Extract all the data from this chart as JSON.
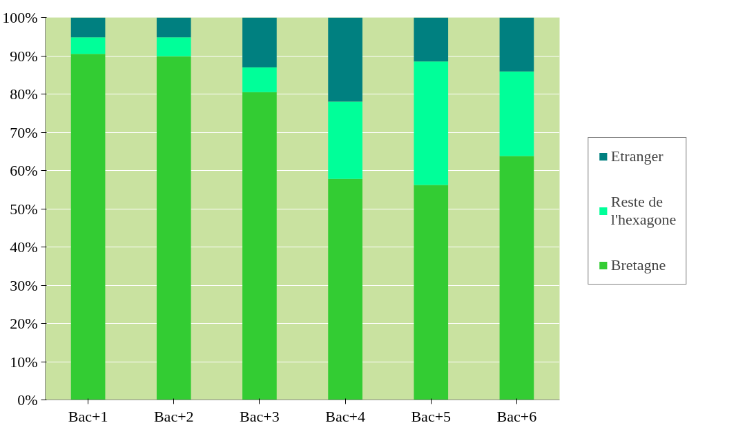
{
  "chart_data": {
    "type": "bar",
    "stacked": true,
    "categories": [
      "Bac+1",
      "Bac+2",
      "Bac+3",
      "Bac+4",
      "Bac+5",
      "Bac+6"
    ],
    "series": [
      {
        "name": "Bretagne",
        "color": "#33cc33",
        "values": [
          90.5,
          89.9,
          80.5,
          57.8,
          56.2,
          63.8
        ]
      },
      {
        "name": "Reste de\nl'hexagone",
        "color": "#00ff99",
        "values": [
          4.3,
          4.9,
          6.5,
          20.2,
          32.3,
          22.1
        ]
      },
      {
        "name": "Etranger",
        "color": "#008080",
        "values": [
          5.2,
          5.2,
          13.0,
          22.0,
          11.5,
          14.1
        ]
      }
    ],
    "ylim": [
      0,
      100
    ],
    "yticks": [
      {
        "value": 0,
        "label": "0%"
      },
      {
        "value": 10,
        "label": "10%"
      },
      {
        "value": 20,
        "label": "20%"
      },
      {
        "value": 30,
        "label": "30%"
      },
      {
        "value": 40,
        "label": "40%"
      },
      {
        "value": 50,
        "label": "50%"
      },
      {
        "value": 60,
        "label": "60%"
      },
      {
        "value": 70,
        "label": "70%"
      },
      {
        "value": 80,
        "label": "80%"
      },
      {
        "value": 90,
        "label": "90%"
      },
      {
        "value": 100,
        "label": "100%"
      }
    ],
    "grid": "y",
    "legend": "right"
  }
}
